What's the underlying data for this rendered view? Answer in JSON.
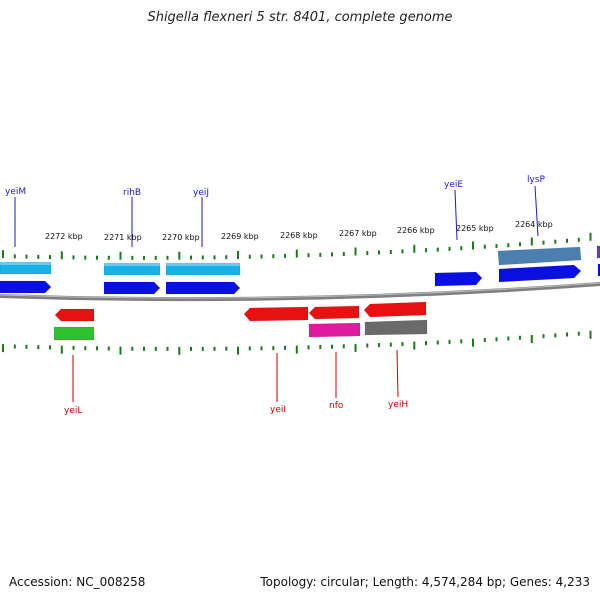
{
  "title": "Shigella flexneri 5 str. 8401, complete genome",
  "footer": {
    "accession": "Accession: NC_008258",
    "summary": "Topology: circular; Length: 4,574,284 bp; Genes: 4,233"
  },
  "colors": {
    "backbone": "#7f7f7f",
    "tick": "#1a7a1a",
    "label_top": "#1a1ad0",
    "label_bottom": "#cc0000",
    "cyan": "#1ab0e8",
    "blue": "#0a10e0",
    "steel": "#4a7fb0",
    "red": "#e81010",
    "green": "#2ec02e",
    "magenta": "#e01aa0",
    "gray": "#6a6a6a",
    "purple": "#6a40a0"
  },
  "scale": {
    "unit": "kbp",
    "ticks": [
      {
        "kbp": 2272,
        "label": "2272 kbp"
      },
      {
        "kbp": 2271,
        "label": "2271 kbp"
      },
      {
        "kbp": 2270,
        "label": "2270 kbp"
      },
      {
        "kbp": 2269,
        "label": "2269 kbp"
      },
      {
        "kbp": 2268,
        "label": "2268 kbp"
      },
      {
        "kbp": 2267,
        "label": "2267 kbp"
      },
      {
        "kbp": 2266,
        "label": "2266 kbp"
      },
      {
        "kbp": 2265,
        "label": "2265 kbp"
      },
      {
        "kbp": 2264,
        "label": "2264 kbp"
      }
    ]
  },
  "genes_top": [
    {
      "name": "yeiM"
    },
    {
      "name": "rihB"
    },
    {
      "name": "yeiJ"
    },
    {
      "name": "yeiE"
    },
    {
      "name": "lysP"
    }
  ],
  "genes_bottom": [
    {
      "name": "yeiL"
    },
    {
      "name": "yeiI"
    },
    {
      "name": "nfo"
    },
    {
      "name": "yeiH"
    }
  ]
}
